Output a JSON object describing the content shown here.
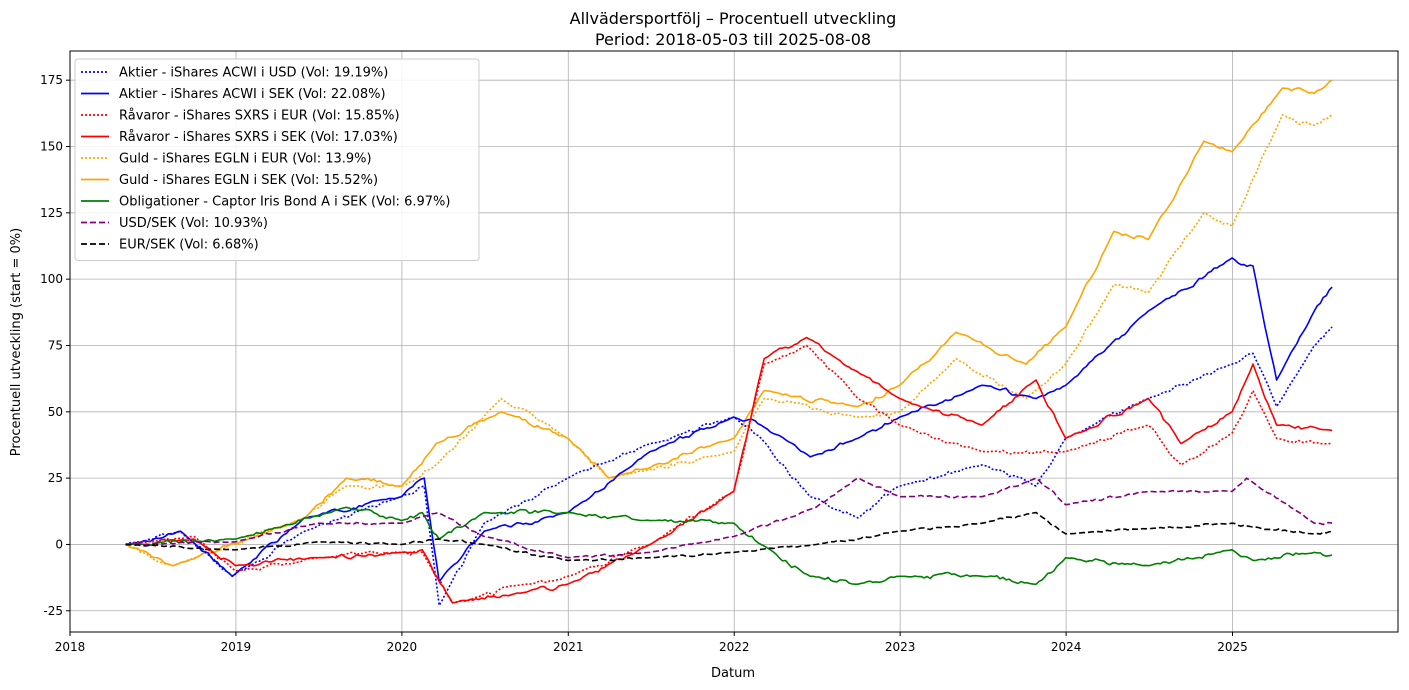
{
  "chart_data": {
    "type": "line",
    "title": "Allvädersportfölj – Procentuell utveckling",
    "subtitle": "Period: 2018-05-03 till 2025-08-08",
    "xlabel": "Datum",
    "ylabel": "Procentuell utveckling (start = 0%)",
    "xlim": [
      "2018-01-01",
      "2025-12-31"
    ],
    "ylim": [
      -33,
      186
    ],
    "x_ticks": [
      "2018",
      "2019",
      "2020",
      "2021",
      "2022",
      "2023",
      "2024",
      "2025"
    ],
    "y_ticks": [
      -25,
      0,
      25,
      50,
      75,
      100,
      125,
      150,
      175
    ],
    "grid": true,
    "legend_position": "top-left",
    "series": [
      {
        "name": "Aktier - iShares ACWI i USD (Vol: 19.19%)",
        "color": "#0000ff",
        "style": "dotted",
        "x": [
          "2018-05-03",
          "2018-09-01",
          "2018-12-24",
          "2019-06-01",
          "2019-12-31",
          "2020-02-19",
          "2020-03-23",
          "2020-06-30",
          "2020-12-31",
          "2021-06-30",
          "2021-12-31",
          "2022-03-01",
          "2022-06-17",
          "2022-09-30",
          "2022-12-31",
          "2023-06-30",
          "2023-10-27",
          "2023-12-31",
          "2024-06-30",
          "2024-12-31",
          "2025-02-15",
          "2025-04-08",
          "2025-06-30",
          "2025-08-08"
        ],
        "values": [
          0,
          5,
          -12,
          5,
          18,
          22,
          -23,
          8,
          25,
          38,
          48,
          40,
          18,
          10,
          22,
          30,
          22,
          40,
          55,
          68,
          72,
          52,
          75,
          82
        ]
      },
      {
        "name": "Aktier - iShares ACWI i SEK (Vol: 22.08%)",
        "color": "#0000ff",
        "style": "solid",
        "x": [
          "2018-05-03",
          "2018-09-01",
          "2018-12-24",
          "2019-06-01",
          "2019-12-31",
          "2020-02-19",
          "2020-03-23",
          "2020-06-30",
          "2020-12-31",
          "2021-06-30",
          "2021-12-31",
          "2022-03-01",
          "2022-06-17",
          "2022-09-30",
          "2022-12-31",
          "2023-06-30",
          "2023-10-27",
          "2023-12-31",
          "2024-06-30",
          "2024-12-31",
          "2025-02-15",
          "2025-04-08",
          "2025-06-30",
          "2025-08-08"
        ],
        "values": [
          0,
          5,
          -12,
          10,
          18,
          25,
          -14,
          5,
          12,
          35,
          48,
          45,
          33,
          40,
          48,
          60,
          55,
          60,
          88,
          108,
          105,
          62,
          88,
          97
        ]
      },
      {
        "name": "Råvaror - iShares SXRS i EUR (Vol: 15.85%)",
        "color": "#ff0000",
        "style": "dotted",
        "x": [
          "2018-05-03",
          "2018-10-01",
          "2018-12-31",
          "2019-06-30",
          "2019-12-31",
          "2020-02-15",
          "2020-04-21",
          "2020-09-30",
          "2020-12-31",
          "2021-06-30",
          "2021-12-31",
          "2022-03-08",
          "2022-06-09",
          "2022-09-30",
          "2022-12-31",
          "2023-06-30",
          "2023-12-31",
          "2024-06-30",
          "2024-09-10",
          "2024-12-31",
          "2025-02-15",
          "2025-04-08",
          "2025-08-08"
        ],
        "values": [
          0,
          3,
          -10,
          -5,
          -3,
          -3,
          -22,
          -15,
          -12,
          0,
          20,
          68,
          75,
          55,
          45,
          35,
          35,
          45,
          30,
          42,
          58,
          40,
          38
        ]
      },
      {
        "name": "Råvaror - iShares SXRS i SEK (Vol: 17.03%)",
        "color": "#ff0000",
        "style": "solid",
        "x": [
          "2018-05-03",
          "2018-10-01",
          "2018-12-31",
          "2019-06-30",
          "2019-12-31",
          "2020-02-15",
          "2020-04-21",
          "2020-09-30",
          "2020-12-31",
          "2021-06-30",
          "2021-12-31",
          "2022-03-08",
          "2022-06-09",
          "2022-09-30",
          "2022-12-31",
          "2023-06-30",
          "2023-10-27",
          "2023-12-31",
          "2024-06-30",
          "2024-09-10",
          "2024-12-31",
          "2025-02-15",
          "2025-04-08",
          "2025-08-08"
        ],
        "values": [
          0,
          2,
          -8,
          -5,
          -3,
          -2,
          -22,
          -18,
          -15,
          0,
          20,
          70,
          78,
          65,
          55,
          45,
          62,
          40,
          55,
          38,
          50,
          68,
          45,
          43
        ]
      },
      {
        "name": "Guld - iShares EGLN i EUR (Vol: 13.9%)",
        "color": "#ffa500",
        "style": "dotted",
        "x": [
          "2018-05-03",
          "2018-08-15",
          "2019-06-01",
          "2019-09-01",
          "2019-12-31",
          "2020-03-16",
          "2020-08-06",
          "2020-12-31",
          "2021-03-31",
          "2021-12-31",
          "2022-03-08",
          "2022-09-30",
          "2022-12-31",
          "2023-05-04",
          "2023-10-05",
          "2023-12-31",
          "2024-04-15",
          "2024-06-30",
          "2024-10-30",
          "2024-12-31",
          "2025-04-21",
          "2025-06-30",
          "2025-08-08"
        ],
        "values": [
          0,
          -8,
          10,
          22,
          22,
          30,
          55,
          40,
          25,
          35,
          55,
          48,
          50,
          70,
          55,
          68,
          98,
          95,
          125,
          120,
          162,
          158,
          162
        ]
      },
      {
        "name": "Guld - iShares EGLN i SEK (Vol: 15.52%)",
        "color": "#ffa500",
        "style": "solid",
        "x": [
          "2018-05-03",
          "2018-08-15",
          "2019-06-01",
          "2019-09-01",
          "2019-12-31",
          "2020-03-16",
          "2020-08-06",
          "2020-12-31",
          "2021-03-31",
          "2021-12-31",
          "2022-03-08",
          "2022-09-30",
          "2022-12-31",
          "2023-05-04",
          "2023-10-05",
          "2023-12-31",
          "2024-04-15",
          "2024-06-30",
          "2024-10-30",
          "2024-12-31",
          "2025-04-21",
          "2025-06-30",
          "2025-08-08"
        ],
        "values": [
          0,
          -8,
          10,
          25,
          22,
          38,
          50,
          40,
          25,
          40,
          58,
          52,
          60,
          80,
          68,
          82,
          118,
          115,
          152,
          148,
          172,
          170,
          175
        ]
      },
      {
        "name": "Obligationer - Captor Iris Bond A i SEK (Vol: 6.97%)",
        "color": "#008000",
        "style": "solid",
        "x": [
          "2018-05-03",
          "2018-12-31",
          "2019-09-01",
          "2019-12-31",
          "2020-02-15",
          "2020-03-23",
          "2020-06-30",
          "2020-12-31",
          "2021-06-30",
          "2021-12-31",
          "2022-03-01",
          "2022-06-17",
          "2022-09-30",
          "2022-12-31",
          "2023-06-30",
          "2023-10-27",
          "2023-12-31",
          "2024-06-30",
          "2024-12-31",
          "2025-02-15",
          "2025-06-30",
          "2025-08-08"
        ],
        "values": [
          0,
          2,
          14,
          9,
          12,
          2,
          12,
          12,
          9,
          8,
          0,
          -12,
          -15,
          -12,
          -12,
          -15,
          -5,
          -8,
          -2,
          -6,
          -3,
          -4
        ]
      },
      {
        "name": "USD/SEK (Vol: 10.93%)",
        "color": "#800080",
        "style": "dashed",
        "x": [
          "2018-05-03",
          "2018-12-31",
          "2019-06-30",
          "2019-12-31",
          "2020-03-20",
          "2020-06-30",
          "2020-12-31",
          "2021-06-30",
          "2021-12-31",
          "2022-06-30",
          "2022-09-30",
          "2022-12-31",
          "2023-06-30",
          "2023-10-27",
          "2023-12-31",
          "2024-06-30",
          "2024-12-31",
          "2025-02-01",
          "2025-06-30",
          "2025-08-08"
        ],
        "values": [
          0,
          1,
          8,
          8,
          12,
          3,
          -5,
          -3,
          3,
          14,
          25,
          18,
          18,
          25,
          15,
          20,
          20,
          25,
          8,
          8
        ]
      },
      {
        "name": "EUR/SEK (Vol: 6.68%)",
        "color": "#000000",
        "style": "dashed",
        "x": [
          "2018-05-03",
          "2018-12-31",
          "2019-06-30",
          "2019-12-31",
          "2020-03-20",
          "2020-06-30",
          "2020-12-31",
          "2021-06-30",
          "2021-12-31",
          "2022-06-30",
          "2022-12-31",
          "2023-06-30",
          "2023-10-27",
          "2023-12-31",
          "2024-06-30",
          "2024-12-31",
          "2025-02-01",
          "2025-06-30",
          "2025-08-08"
        ],
        "values": [
          0,
          -2,
          1,
          0,
          2,
          0,
          -6,
          -5,
          -3,
          0,
          5,
          8,
          12,
          4,
          6,
          8,
          7,
          4,
          5
        ]
      }
    ]
  }
}
